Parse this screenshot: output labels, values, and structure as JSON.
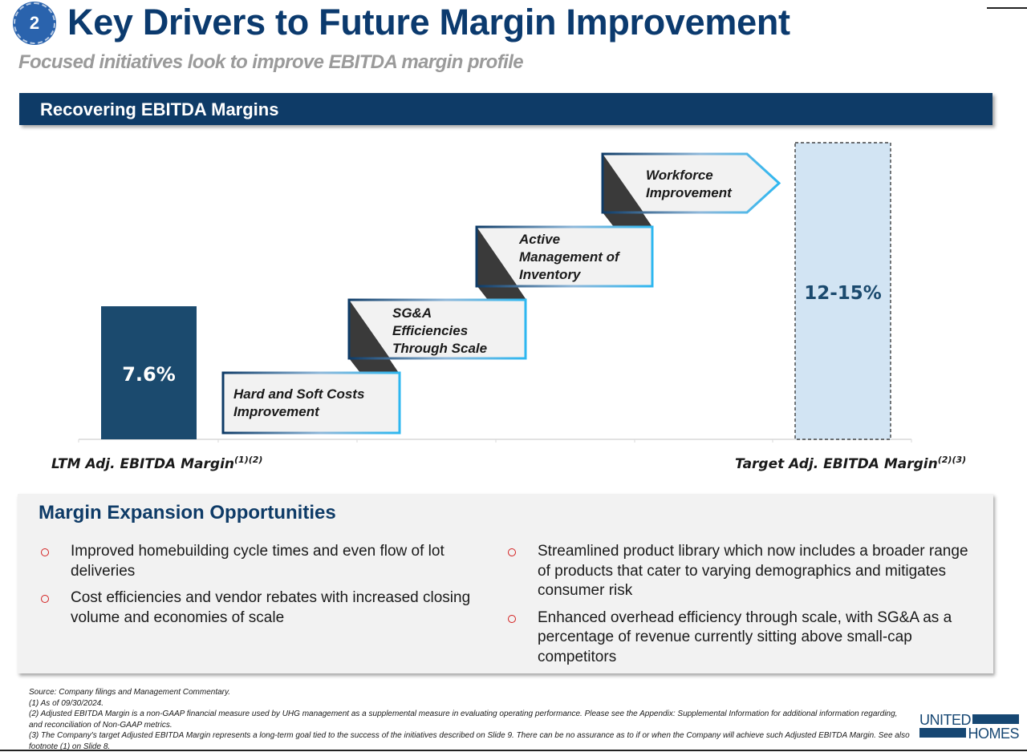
{
  "header": {
    "badge_number": "2",
    "title": "Key Drivers to Future Margin Improvement",
    "subtitle": "Focused initiatives look to improve EBITDA margin profile"
  },
  "section": {
    "title": "Recovering EBITDA Margins"
  },
  "colors": {
    "navy": "#0e3b67",
    "bar_current": "#1b4a6e",
    "bar_target": "#d2e4f3",
    "step_fill": "#f2f2f2",
    "step_shadow": "#3a3a3a",
    "step_border_start": "#0e3b67",
    "step_border_end": "#2db7f0",
    "bullet_red": "#d42020"
  },
  "chart_data": {
    "type": "bar",
    "title": "Recovering EBITDA Margins",
    "categories": [
      "LTM Adj. EBITDA Margin",
      "Target Adj. EBITDA Margin"
    ],
    "category_footnotes": [
      "(1)(2)",
      "(2)(3)"
    ],
    "values": [
      7.6,
      [
        12,
        15
      ]
    ],
    "value_labels": [
      "7.6%",
      "12-15%"
    ],
    "units": "%",
    "ylim": [
      0,
      17
    ],
    "grid": false,
    "bar_styles": [
      "solid",
      "dashed"
    ],
    "steps": [
      {
        "lines": [
          "Hard and Soft Costs",
          "Improvement"
        ]
      },
      {
        "lines": [
          "SG&A",
          "Efficiencies",
          "Through Scale"
        ]
      },
      {
        "lines": [
          "Active",
          "Management of",
          "Inventory"
        ]
      },
      {
        "lines": [
          "Workforce",
          "Improvement"
        ]
      }
    ]
  },
  "panel": {
    "title": "Margin Expansion Opportunities",
    "left_bullets": [
      "Improved homebuilding cycle times and even flow of lot deliveries",
      "Cost efficiencies and vendor rebates with increased closing volume and economies of scale"
    ],
    "right_bullets": [
      "Streamlined product library which now includes a broader range of products that cater to varying demographics and mitigates consumer risk",
      "Enhanced overhead efficiency through scale, with SG&A as a percentage of revenue currently sitting above small-cap competitors"
    ]
  },
  "footnotes": [
    "Source: Company filings and Management Commentary.",
    "(1) As of 09/30/2024.",
    "(2) Adjusted EBITDA Margin is a non-GAAP financial measure used by UHG management as a supplemental measure in evaluating operating performance. Please see the Appendix: Supplemental Information for additional information regarding, and reconciliation of Non-GAAP metrics.",
    "(3) The Company's target Adjusted EBITDA Margin represents a long-term goal tied to the success of the initiatives described on Slide 9. There can be no assurance as to if or when the Company will achieve such Adjusted EBITDA Margin. See also footnote (1) on Slide 8."
  ],
  "logo": {
    "word1": "UNITED",
    "word2": "HOMES"
  }
}
